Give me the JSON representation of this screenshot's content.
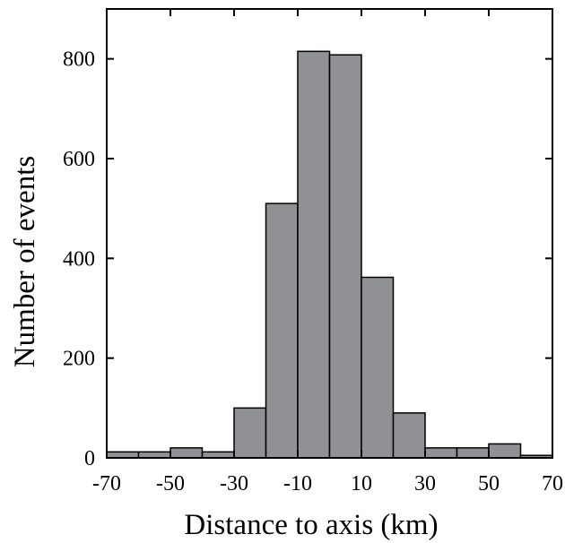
{
  "chart_data": {
    "type": "bar",
    "title": "",
    "xlabel": "Distance to axis (km)",
    "ylabel": "Number of events",
    "xlim": [
      -70,
      70
    ],
    "ylim": [
      0,
      900
    ],
    "x_ticks": [
      -70,
      -50,
      -30,
      -10,
      10,
      30,
      50,
      70
    ],
    "x_tick_labels": [
      "-70",
      "-50",
      "-30",
      "-10",
      "10",
      "30",
      "50",
      "70"
    ],
    "y_ticks": [
      0,
      200,
      400,
      600,
      800
    ],
    "y_tick_labels": [
      "0",
      "200",
      "400",
      "600",
      "800"
    ],
    "bin_width": 10,
    "bins": [
      {
        "x0": -70,
        "x1": -60,
        "value": 12
      },
      {
        "x0": -60,
        "x1": -50,
        "value": 12
      },
      {
        "x0": -50,
        "x1": -40,
        "value": 20
      },
      {
        "x0": -40,
        "x1": -30,
        "value": 12
      },
      {
        "x0": -30,
        "x1": -20,
        "value": 100
      },
      {
        "x0": -20,
        "x1": -10,
        "value": 510
      },
      {
        "x0": -10,
        "x1": 0,
        "value": 815
      },
      {
        "x0": 0,
        "x1": 10,
        "value": 808
      },
      {
        "x0": 10,
        "x1": 20,
        "value": 362
      },
      {
        "x0": 20,
        "x1": 30,
        "value": 90
      },
      {
        "x0": 30,
        "x1": 40,
        "value": 20
      },
      {
        "x0": 40,
        "x1": 50,
        "value": 20
      },
      {
        "x0": 50,
        "x1": 60,
        "value": 28
      },
      {
        "x0": 60,
        "x1": 70,
        "value": 5
      }
    ],
    "bar_color": "#8f9194",
    "grid": false,
    "legend": "none"
  }
}
